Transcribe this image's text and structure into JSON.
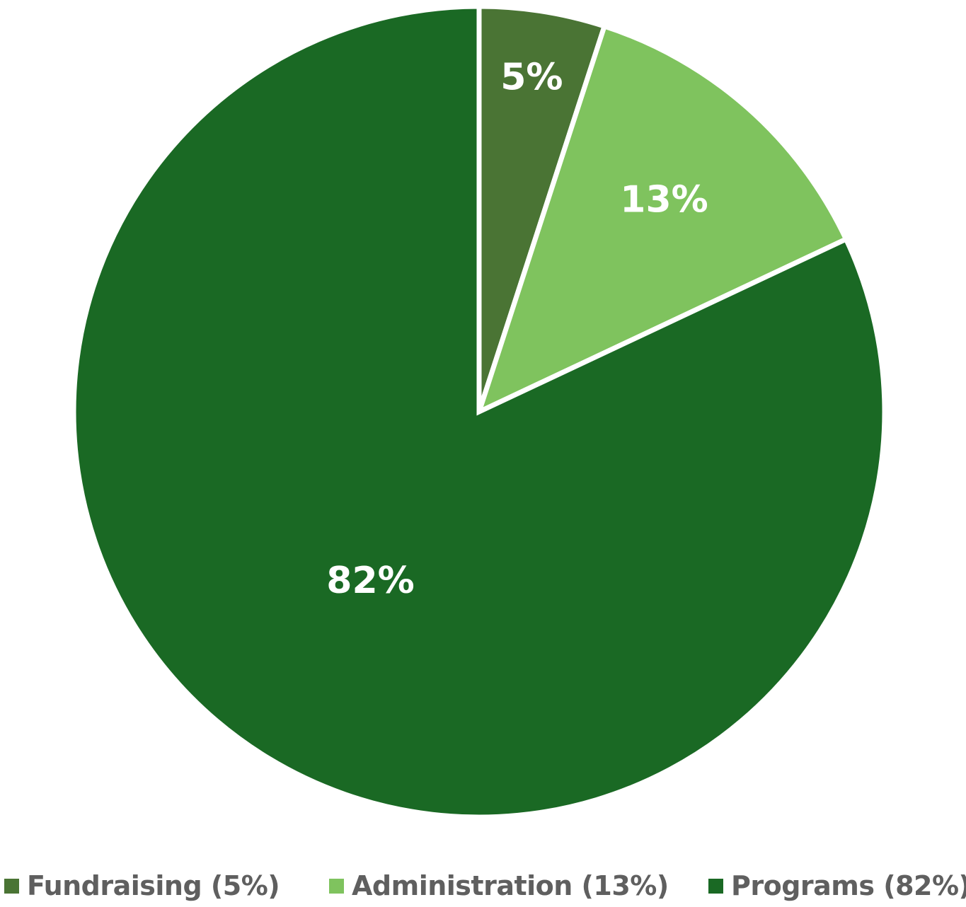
{
  "chart_data": {
    "type": "pie",
    "categories": [
      "Fundraising",
      "Administration",
      "Programs"
    ],
    "values": [
      5,
      13,
      82
    ],
    "data_labels": [
      "5%",
      "13%",
      "82%"
    ],
    "colors": [
      "#4a7434",
      "#7fc35e",
      "#1a6924"
    ],
    "legend": {
      "placement": "bottom",
      "entries": [
        "Fundraising (5%)",
        "Administration (13%)",
        "Programs (82%)"
      ]
    },
    "start_angle": "12 o'clock",
    "direction": "clockwise"
  }
}
